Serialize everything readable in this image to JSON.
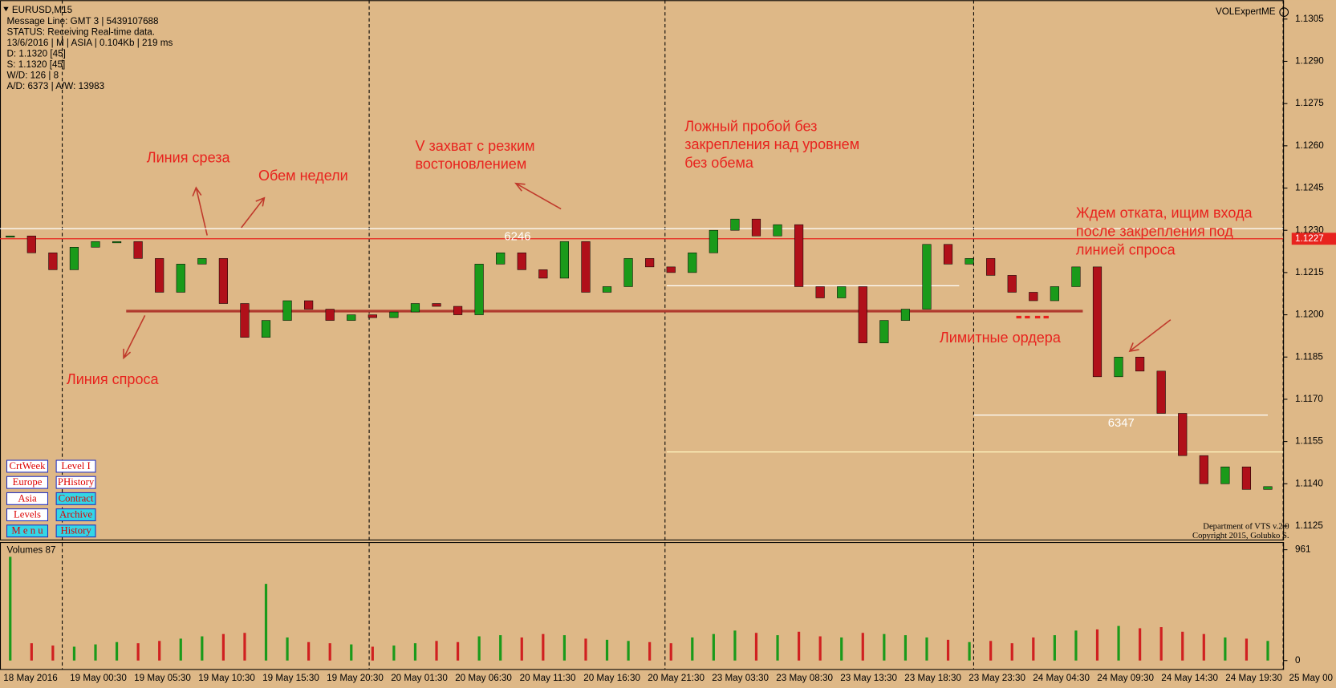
{
  "window": {
    "symbol": "EURUSD,M15",
    "indicator": "VOLExpertME"
  },
  "info_lines": [
    "Message Line: GMT 3 | 5439107688",
    "STATUS:  Receiving Real-time data.",
    "13/6/2016 | M | ASIA | 0.104Kb | 219 ms",
    "D: 1.1320  [45]",
    "S: 1.1320  [45]",
    "W/D: 126 | 8",
    "A/D: 6373 | A/W: 13983"
  ],
  "annotations": [
    {
      "lines": [
        "Линия среза"
      ]
    },
    {
      "lines": [
        "Обем недели"
      ]
    },
    {
      "lines": [
        "V захват с резким",
        "востоновлением"
      ]
    },
    {
      "lines": [
        "Ложный пробой без",
        "закрепления над уровнем",
        "без обема"
      ]
    },
    {
      "lines": [
        "Ждем отката, ищим входа",
        "после закрепления под",
        "линией спроса"
      ]
    },
    {
      "lines": [
        "Лимитные ордера"
      ]
    },
    {
      "lines": [
        "Линия спроса"
      ]
    }
  ],
  "buttons": [
    [
      "CrtWeek",
      "Level I"
    ],
    [
      "Europe",
      "PHistory"
    ],
    [
      "Asia",
      "Contract"
    ],
    [
      "Levels",
      "Archive"
    ],
    [
      "M e n u",
      "History"
    ]
  ],
  "footer": [
    "Department of VTS  v.2.0",
    "Copyright 2015, Golubko S."
  ],
  "price_axis": {
    "ylim": [
      1.11205,
      1.13117
    ],
    "yticks": [
      1.1305,
      {
        "value": 1.129,
        "label": "1.1290"
      },
      1.1275,
      {
        "value": 1.126,
        "label": "1.1260"
      },
      1.1245,
      {
        "value": 1.123,
        "label": "1.1230"
      },
      1.1215,
      {
        "value": 1.12,
        "label": "1.1200"
      },
      1.1185,
      {
        "value": 1.117,
        "label": "1.1170"
      },
      1.1155,
      {
        "value": 1.114,
        "label": "1.1140"
      },
      1.1125
    ],
    "current": 1.1227
  },
  "time_axis": {
    "labels": [
      "18 May 2016",
      "19 May 00:30",
      "19 May 05:30",
      "19 May 10:30",
      "19 May 15:30",
      "19 May 20:30",
      "20 May 01:30",
      "20 May 06:30",
      "20 May 11:30",
      "20 May 16:30",
      "20 May 21:30",
      "23 May 03:30",
      "23 May 08:30",
      "23 May 13:30",
      "23 May 18:30",
      "23 May 23:30",
      "24 May 04:30",
      "24 May 09:30",
      "24 May 14:30",
      "24 May 19:30",
      "25 May 00"
    ]
  },
  "prices": [
    1.1228,
    1.1222,
    1.1216,
    1.1224,
    1.1226,
    1.1226,
    1.122,
    1.1208,
    1.1218,
    1.122,
    1.1204,
    1.1192,
    1.1198,
    1.1205,
    1.1202,
    1.1198,
    1.12,
    1.1199,
    1.1201,
    1.1204,
    1.1203,
    1.12,
    1.1218,
    1.1222,
    1.1216,
    1.1213,
    1.1226,
    1.1208,
    1.121,
    1.122,
    1.1217,
    1.1215,
    1.1222,
    1.123,
    1.1234,
    1.1228,
    1.1232,
    1.121,
    1.1206,
    1.121,
    1.119,
    1.1198,
    1.1202,
    1.1225,
    1.1218,
    1.122,
    1.1214,
    1.1208,
    1.1205,
    1.121,
    1.1217,
    1.1178,
    1.1185,
    1.118,
    1.1165,
    1.115,
    1.114,
    1.1146,
    1.1138,
    1.1139
  ],
  "volumes": {
    "title": "Volumes 87",
    "ylim": [
      0,
      961
    ],
    "yticks": [
      961,
      0
    ],
    "values": [
      900,
      150,
      130,
      120,
      140,
      160,
      150,
      170,
      190,
      210,
      230,
      240,
      665,
      200,
      160,
      150,
      140,
      120,
      130,
      150,
      170,
      160,
      210,
      220,
      200,
      230,
      220,
      190,
      180,
      170,
      160,
      150,
      200,
      230,
      260,
      240,
      220,
      250,
      210,
      200,
      240,
      230,
      220,
      200,
      180,
      160,
      170,
      150,
      200,
      220,
      260,
      270,
      300,
      280,
      290,
      250,
      230,
      200,
      190,
      170
    ]
  },
  "levels": [
    {
      "value": 1.12306
    },
    {
      "value": 1.1227
    },
    {
      "value": 1.12103
    },
    {
      "value": 1.12013
    },
    {
      "value": 1.11644,
      "label": 6347
    },
    {
      "value": 1.11513
    }
  ],
  "level_labels": [
    6246
  ]
}
